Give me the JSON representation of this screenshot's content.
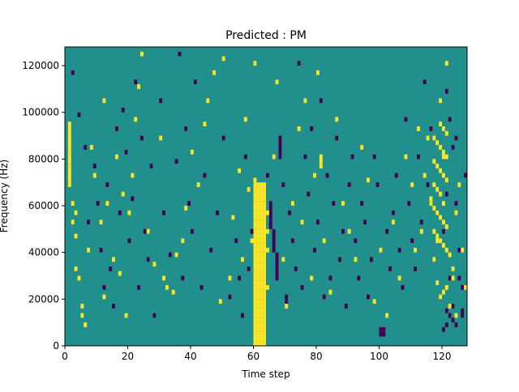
{
  "chart_data": {
    "type": "heatmap",
    "title": "Predicted : PM",
    "xlabel": "Time step",
    "ylabel": "Frequency (Hz)",
    "xlim": [
      0,
      128
    ],
    "ylim": [
      0,
      128000
    ],
    "x_ticks": [
      0,
      20,
      40,
      60,
      80,
      100,
      120
    ],
    "x_tick_labels": [
      "0",
      "20",
      "40",
      "60",
      "80",
      "100",
      "120"
    ],
    "y_ticks": [
      0,
      20000,
      40000,
      60000,
      80000,
      100000,
      120000
    ],
    "y_tick_labels": [
      "0",
      "20000",
      "40000",
      "60000",
      "80000",
      "100000",
      "120000"
    ],
    "n_time_steps": 128,
    "n_freq_bins": 64,
    "bin_height_hz": 2000,
    "colormap": "viridis",
    "grid": false,
    "colors": {
      "background": "#21908d",
      "high": "#fde725",
      "low": "#440154"
    },
    "high_cells": [
      [
        1,
        34
      ],
      [
        1,
        35
      ],
      [
        1,
        36
      ],
      [
        1,
        37
      ],
      [
        1,
        38
      ],
      [
        1,
        39
      ],
      [
        1,
        40
      ],
      [
        1,
        41
      ],
      [
        1,
        42
      ],
      [
        1,
        43
      ],
      [
        1,
        44
      ],
      [
        1,
        45
      ],
      [
        1,
        46
      ],
      [
        1,
        47
      ],
      [
        2,
        26
      ],
      [
        2,
        30
      ],
      [
        3,
        28
      ],
      [
        3,
        23
      ],
      [
        3,
        16
      ],
      [
        4,
        14
      ],
      [
        5,
        8
      ],
      [
        5,
        6
      ],
      [
        6,
        4
      ],
      [
        7,
        20
      ],
      [
        8,
        42
      ],
      [
        9,
        36
      ],
      [
        11,
        26
      ],
      [
        12,
        52
      ],
      [
        12,
        10
      ],
      [
        13,
        30
      ],
      [
        15,
        18
      ],
      [
        16,
        40
      ],
      [
        17,
        15
      ],
      [
        18,
        32
      ],
      [
        19,
        6
      ],
      [
        20,
        28
      ],
      [
        21,
        36
      ],
      [
        22,
        48
      ],
      [
        23,
        55
      ],
      [
        24,
        62
      ],
      [
        26,
        24
      ],
      [
        28,
        17
      ],
      [
        30,
        44
      ],
      [
        31,
        14
      ],
      [
        32,
        12
      ],
      [
        34,
        11
      ],
      [
        35,
        19
      ],
      [
        37,
        22
      ],
      [
        38,
        29
      ],
      [
        40,
        41
      ],
      [
        42,
        34
      ],
      [
        44,
        47
      ],
      [
        45,
        52
      ],
      [
        47,
        58
      ],
      [
        49,
        9
      ],
      [
        50,
        61
      ],
      [
        52,
        14
      ],
      [
        53,
        27
      ],
      [
        55,
        37
      ],
      [
        56,
        18
      ],
      [
        57,
        48
      ],
      [
        58,
        33
      ],
      [
        59,
        22
      ],
      [
        60,
        60
      ],
      [
        60,
        35
      ],
      [
        60,
        34
      ],
      [
        60,
        33
      ],
      [
        60,
        32
      ],
      [
        60,
        31
      ],
      [
        60,
        30
      ],
      [
        60,
        29
      ],
      [
        60,
        28
      ],
      [
        60,
        27
      ],
      [
        60,
        26
      ],
      [
        60,
        25
      ],
      [
        60,
        24
      ],
      [
        60,
        23
      ],
      [
        60,
        22
      ],
      [
        60,
        21
      ],
      [
        60,
        20
      ],
      [
        60,
        19
      ],
      [
        60,
        18
      ],
      [
        60,
        17
      ],
      [
        60,
        16
      ],
      [
        60,
        15
      ],
      [
        60,
        14
      ],
      [
        60,
        13
      ],
      [
        60,
        12
      ],
      [
        60,
        11
      ],
      [
        60,
        10
      ],
      [
        60,
        9
      ],
      [
        60,
        8
      ],
      [
        60,
        7
      ],
      [
        60,
        6
      ],
      [
        60,
        5
      ],
      [
        60,
        4
      ],
      [
        60,
        3
      ],
      [
        60,
        2
      ],
      [
        60,
        1
      ],
      [
        60,
        0
      ],
      [
        61,
        34
      ],
      [
        61,
        33
      ],
      [
        61,
        32
      ],
      [
        61,
        31
      ],
      [
        61,
        30
      ],
      [
        61,
        29
      ],
      [
        61,
        28
      ],
      [
        61,
        27
      ],
      [
        61,
        26
      ],
      [
        61,
        25
      ],
      [
        61,
        24
      ],
      [
        61,
        23
      ],
      [
        61,
        22
      ],
      [
        61,
        21
      ],
      [
        61,
        20
      ],
      [
        61,
        19
      ],
      [
        61,
        18
      ],
      [
        61,
        17
      ],
      [
        61,
        16
      ],
      [
        61,
        15
      ],
      [
        61,
        14
      ],
      [
        61,
        13
      ],
      [
        61,
        12
      ],
      [
        61,
        11
      ],
      [
        61,
        10
      ],
      [
        61,
        9
      ],
      [
        61,
        8
      ],
      [
        61,
        7
      ],
      [
        61,
        6
      ],
      [
        61,
        5
      ],
      [
        61,
        4
      ],
      [
        61,
        3
      ],
      [
        61,
        2
      ],
      [
        61,
        1
      ],
      [
        61,
        0
      ],
      [
        62,
        34
      ],
      [
        62,
        33
      ],
      [
        62,
        32
      ],
      [
        62,
        31
      ],
      [
        62,
        30
      ],
      [
        62,
        29
      ],
      [
        62,
        28
      ],
      [
        62,
        27
      ],
      [
        62,
        26
      ],
      [
        62,
        25
      ],
      [
        62,
        24
      ],
      [
        62,
        23
      ],
      [
        62,
        22
      ],
      [
        62,
        21
      ],
      [
        62,
        20
      ],
      [
        62,
        19
      ],
      [
        62,
        18
      ],
      [
        62,
        17
      ],
      [
        62,
        16
      ],
      [
        62,
        15
      ],
      [
        62,
        14
      ],
      [
        62,
        13
      ],
      [
        62,
        12
      ],
      [
        62,
        11
      ],
      [
        62,
        10
      ],
      [
        62,
        9
      ],
      [
        62,
        8
      ],
      [
        62,
        7
      ],
      [
        62,
        6
      ],
      [
        62,
        5
      ],
      [
        62,
        4
      ],
      [
        62,
        3
      ],
      [
        62,
        2
      ],
      [
        62,
        1
      ],
      [
        62,
        0
      ],
      [
        63,
        34
      ],
      [
        63,
        33
      ],
      [
        63,
        32
      ],
      [
        63,
        31
      ],
      [
        63,
        30
      ],
      [
        63,
        29
      ],
      [
        63,
        28
      ],
      [
        63,
        27
      ],
      [
        63,
        26
      ],
      [
        63,
        25
      ],
      [
        63,
        24
      ],
      [
        63,
        23
      ],
      [
        63,
        22
      ],
      [
        63,
        21
      ],
      [
        63,
        20
      ],
      [
        63,
        19
      ],
      [
        63,
        18
      ],
      [
        63,
        17
      ],
      [
        63,
        16
      ],
      [
        63,
        15
      ],
      [
        63,
        14
      ],
      [
        63,
        13
      ],
      [
        63,
        12
      ],
      [
        63,
        11
      ],
      [
        63,
        10
      ],
      [
        63,
        9
      ],
      [
        63,
        8
      ],
      [
        63,
        7
      ],
      [
        63,
        6
      ],
      [
        63,
        5
      ],
      [
        63,
        4
      ],
      [
        63,
        3
      ],
      [
        63,
        2
      ],
      [
        63,
        1
      ],
      [
        63,
        0
      ],
      [
        64,
        28
      ],
      [
        64,
        24
      ],
      [
        64,
        20
      ],
      [
        64,
        12
      ],
      [
        66,
        40
      ],
      [
        67,
        56
      ],
      [
        69,
        18
      ],
      [
        70,
        8
      ],
      [
        72,
        30
      ],
      [
        74,
        46
      ],
      [
        75,
        26
      ],
      [
        76,
        52
      ],
      [
        78,
        14
      ],
      [
        79,
        36
      ],
      [
        80,
        58
      ],
      [
        81,
        40
      ],
      [
        81,
        39
      ],
      [
        81,
        38
      ],
      [
        82,
        22
      ],
      [
        84,
        11
      ],
      [
        86,
        48
      ],
      [
        88,
        30
      ],
      [
        90,
        24
      ],
      [
        92,
        18
      ],
      [
        94,
        42
      ],
      [
        96,
        35
      ],
      [
        98,
        9
      ],
      [
        100,
        20
      ],
      [
        102,
        6
      ],
      [
        104,
        26
      ],
      [
        106,
        14
      ],
      [
        108,
        40
      ],
      [
        110,
        34
      ],
      [
        111,
        20
      ],
      [
        112,
        46
      ],
      [
        113,
        24
      ],
      [
        114,
        36
      ],
      [
        115,
        44
      ],
      [
        116,
        30
      ],
      [
        117,
        18
      ],
      [
        118,
        22
      ],
      [
        119,
        52
      ],
      [
        120,
        40
      ],
      [
        121,
        60
      ],
      [
        122,
        8
      ],
      [
        123,
        16
      ],
      [
        124,
        28
      ],
      [
        125,
        34
      ],
      [
        126,
        20
      ],
      [
        127,
        12
      ],
      [
        121,
        12
      ],
      [
        120,
        11
      ],
      [
        119,
        10
      ],
      [
        123,
        14
      ],
      [
        124,
        6
      ],
      [
        118,
        13
      ],
      [
        122,
        19
      ],
      [
        121,
        20
      ],
      [
        120,
        21
      ],
      [
        119,
        22
      ],
      [
        118,
        23
      ],
      [
        117,
        24
      ],
      [
        121,
        25
      ],
      [
        120,
        26
      ],
      [
        119,
        27
      ],
      [
        118,
        28
      ],
      [
        117,
        29
      ],
      [
        120,
        30
      ],
      [
        116,
        31
      ],
      [
        119,
        32
      ],
      [
        118,
        33
      ],
      [
        117,
        34
      ],
      [
        121,
        35
      ],
      [
        120,
        36
      ],
      [
        119,
        37
      ],
      [
        118,
        38
      ],
      [
        117,
        39
      ],
      [
        121,
        40
      ],
      [
        120,
        41
      ],
      [
        119,
        42
      ],
      [
        118,
        43
      ],
      [
        117,
        44
      ],
      [
        121,
        45
      ],
      [
        120,
        46
      ],
      [
        119,
        47
      ]
    ],
    "low_cells": [
      [
        2,
        58
      ],
      [
        4,
        49
      ],
      [
        6,
        42
      ],
      [
        7,
        26
      ],
      [
        9,
        38
      ],
      [
        10,
        30
      ],
      [
        11,
        20
      ],
      [
        12,
        12
      ],
      [
        13,
        34
      ],
      [
        14,
        16
      ],
      [
        15,
        8
      ],
      [
        16,
        46
      ],
      [
        17,
        28
      ],
      [
        18,
        50
      ],
      [
        19,
        41
      ],
      [
        20,
        22
      ],
      [
        21,
        31
      ],
      [
        22,
        56
      ],
      [
        23,
        12
      ],
      [
        24,
        44
      ],
      [
        25,
        24
      ],
      [
        26,
        18
      ],
      [
        27,
        38
      ],
      [
        28,
        6
      ],
      [
        30,
        52
      ],
      [
        31,
        28
      ],
      [
        33,
        19
      ],
      [
        35,
        39
      ],
      [
        36,
        62
      ],
      [
        37,
        14
      ],
      [
        38,
        46
      ],
      [
        39,
        30
      ],
      [
        40,
        24
      ],
      [
        41,
        56
      ],
      [
        43,
        12
      ],
      [
        44,
        36
      ],
      [
        46,
        20
      ],
      [
        48,
        28
      ],
      [
        50,
        44
      ],
      [
        52,
        10
      ],
      [
        54,
        22
      ],
      [
        55,
        14
      ],
      [
        56,
        6
      ],
      [
        57,
        40
      ],
      [
        58,
        16
      ],
      [
        59,
        24
      ],
      [
        64,
        36
      ],
      [
        65,
        30
      ],
      [
        65,
        29
      ],
      [
        65,
        28
      ],
      [
        65,
        27
      ],
      [
        65,
        26
      ],
      [
        65,
        25
      ],
      [
        66,
        24
      ],
      [
        66,
        23
      ],
      [
        66,
        22
      ],
      [
        66,
        21
      ],
      [
        66,
        20
      ],
      [
        67,
        19
      ],
      [
        67,
        18
      ],
      [
        67,
        17
      ],
      [
        67,
        16
      ],
      [
        67,
        15
      ],
      [
        67,
        14
      ],
      [
        68,
        44
      ],
      [
        68,
        43
      ],
      [
        68,
        42
      ],
      [
        68,
        41
      ],
      [
        68,
        40
      ],
      [
        69,
        34
      ],
      [
        70,
        10
      ],
      [
        70,
        9
      ],
      [
        71,
        28
      ],
      [
        72,
        22
      ],
      [
        73,
        16
      ],
      [
        74,
        60
      ],
      [
        75,
        12
      ],
      [
        76,
        40
      ],
      [
        77,
        32
      ],
      [
        78,
        46
      ],
      [
        79,
        20
      ],
      [
        80,
        26
      ],
      [
        81,
        52
      ],
      [
        82,
        10
      ],
      [
        83,
        36
      ],
      [
        84,
        14
      ],
      [
        85,
        30
      ],
      [
        86,
        44
      ],
      [
        87,
        18
      ],
      [
        88,
        24
      ],
      [
        89,
        8
      ],
      [
        90,
        34
      ],
      [
        91,
        40
      ],
      [
        92,
        22
      ],
      [
        93,
        14
      ],
      [
        94,
        30
      ],
      [
        95,
        26
      ],
      [
        96,
        10
      ],
      [
        97,
        18
      ],
      [
        98,
        40
      ],
      [
        99,
        34
      ],
      [
        100,
        2
      ],
      [
        101,
        2
      ],
      [
        100,
        3
      ],
      [
        101,
        3
      ],
      [
        102,
        24
      ],
      [
        103,
        16
      ],
      [
        104,
        28
      ],
      [
        105,
        36
      ],
      [
        106,
        20
      ],
      [
        107,
        12
      ],
      [
        108,
        48
      ],
      [
        109,
        30
      ],
      [
        110,
        22
      ],
      [
        111,
        16
      ],
      [
        112,
        40
      ],
      [
        113,
        26
      ],
      [
        114,
        56
      ],
      [
        115,
        34
      ],
      [
        116,
        46
      ],
      [
        117,
        18
      ],
      [
        118,
        28
      ],
      [
        119,
        10
      ],
      [
        120,
        24
      ],
      [
        121,
        32
      ],
      [
        122,
        14
      ],
      [
        123,
        8
      ],
      [
        124,
        44
      ],
      [
        125,
        20
      ],
      [
        126,
        12
      ],
      [
        127,
        36
      ],
      [
        121,
        54
      ],
      [
        122,
        48
      ],
      [
        123,
        42
      ],
      [
        124,
        30
      ],
      [
        125,
        14
      ],
      [
        126,
        6
      ],
      [
        126,
        7
      ],
      [
        124,
        4
      ],
      [
        123,
        5
      ],
      [
        122,
        6
      ],
      [
        121,
        7
      ],
      [
        120,
        3
      ],
      [
        121,
        4
      ]
    ]
  }
}
